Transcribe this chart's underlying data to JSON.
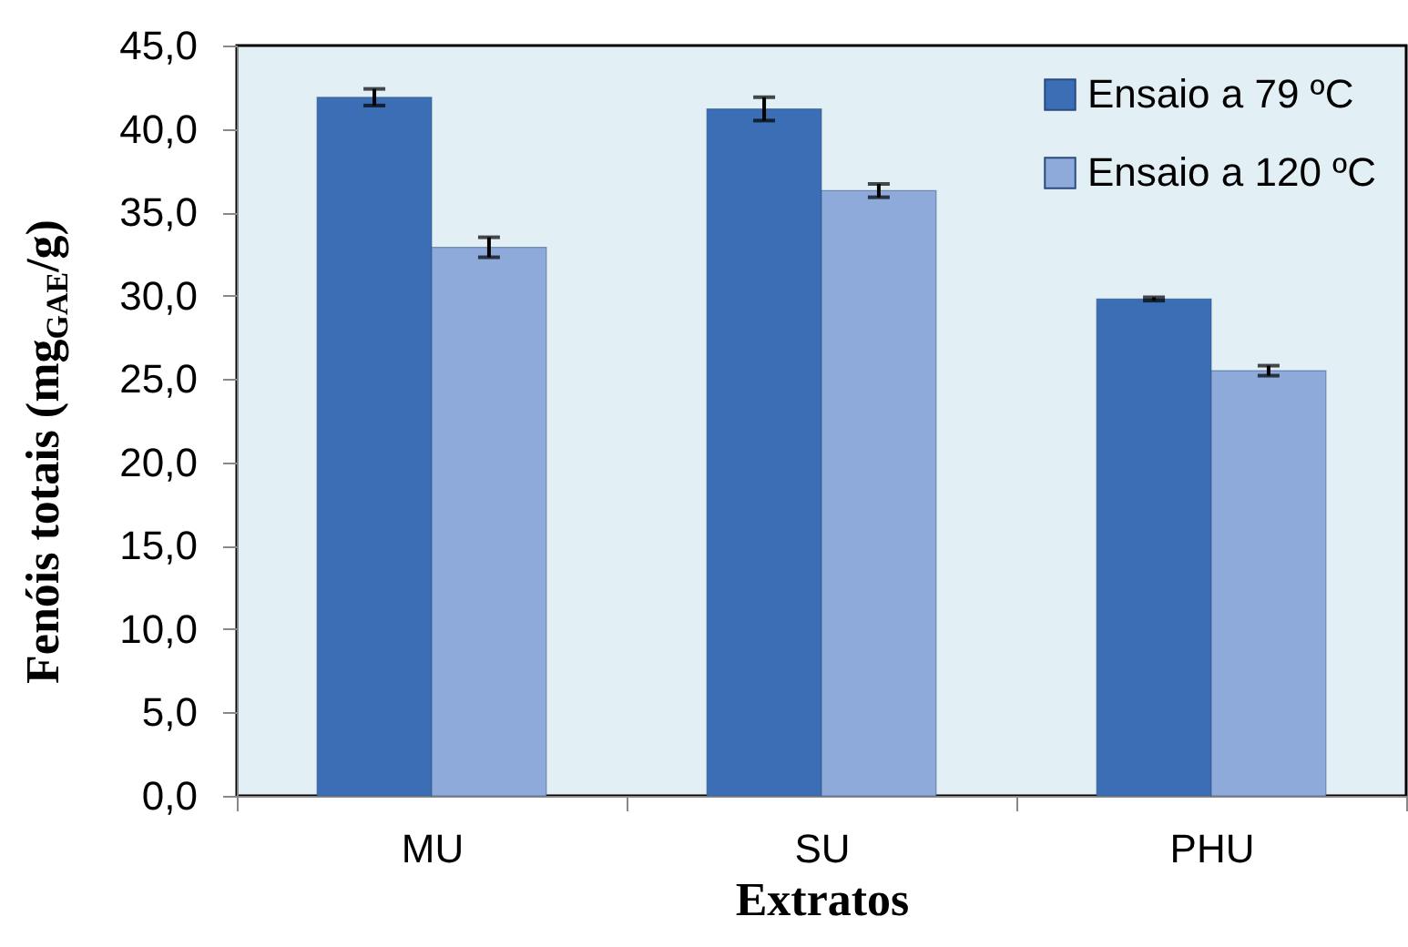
{
  "chart_data": {
    "type": "bar",
    "xlabel": "Extratos",
    "ylabel": "Fenóis totais (mg$_{GAE}$/g)",
    "categories": [
      "MU",
      "SU",
      "PHU"
    ],
    "series": [
      {
        "name": "Ensaio a 79 ºC",
        "color": "#3b6eb4",
        "values": [
          41.9,
          41.2,
          29.8
        ],
        "errors": [
          0.5,
          0.7,
          0.1
        ]
      },
      {
        "name": "Ensaio a 120 ºC",
        "color": "#8eaadb",
        "values": [
          32.9,
          36.3,
          25.5
        ],
        "errors": [
          0.6,
          0.4,
          0.3
        ]
      }
    ],
    "ylim": [
      0,
      45
    ],
    "yticks": [
      {
        "value": 0,
        "label": "0,0"
      },
      {
        "value": 5,
        "label": "5,0"
      },
      {
        "value": 10,
        "label": "10,0"
      },
      {
        "value": 15,
        "label": "15,0"
      },
      {
        "value": 20,
        "label": "20,0"
      },
      {
        "value": 25,
        "label": "25,0"
      },
      {
        "value": 30,
        "label": "30,0"
      },
      {
        "value": 35,
        "label": "35,0"
      },
      {
        "value": 40,
        "label": "40,0"
      },
      {
        "value": 45,
        "label": "45,0"
      }
    ],
    "grid": false,
    "legend": "top right"
  }
}
